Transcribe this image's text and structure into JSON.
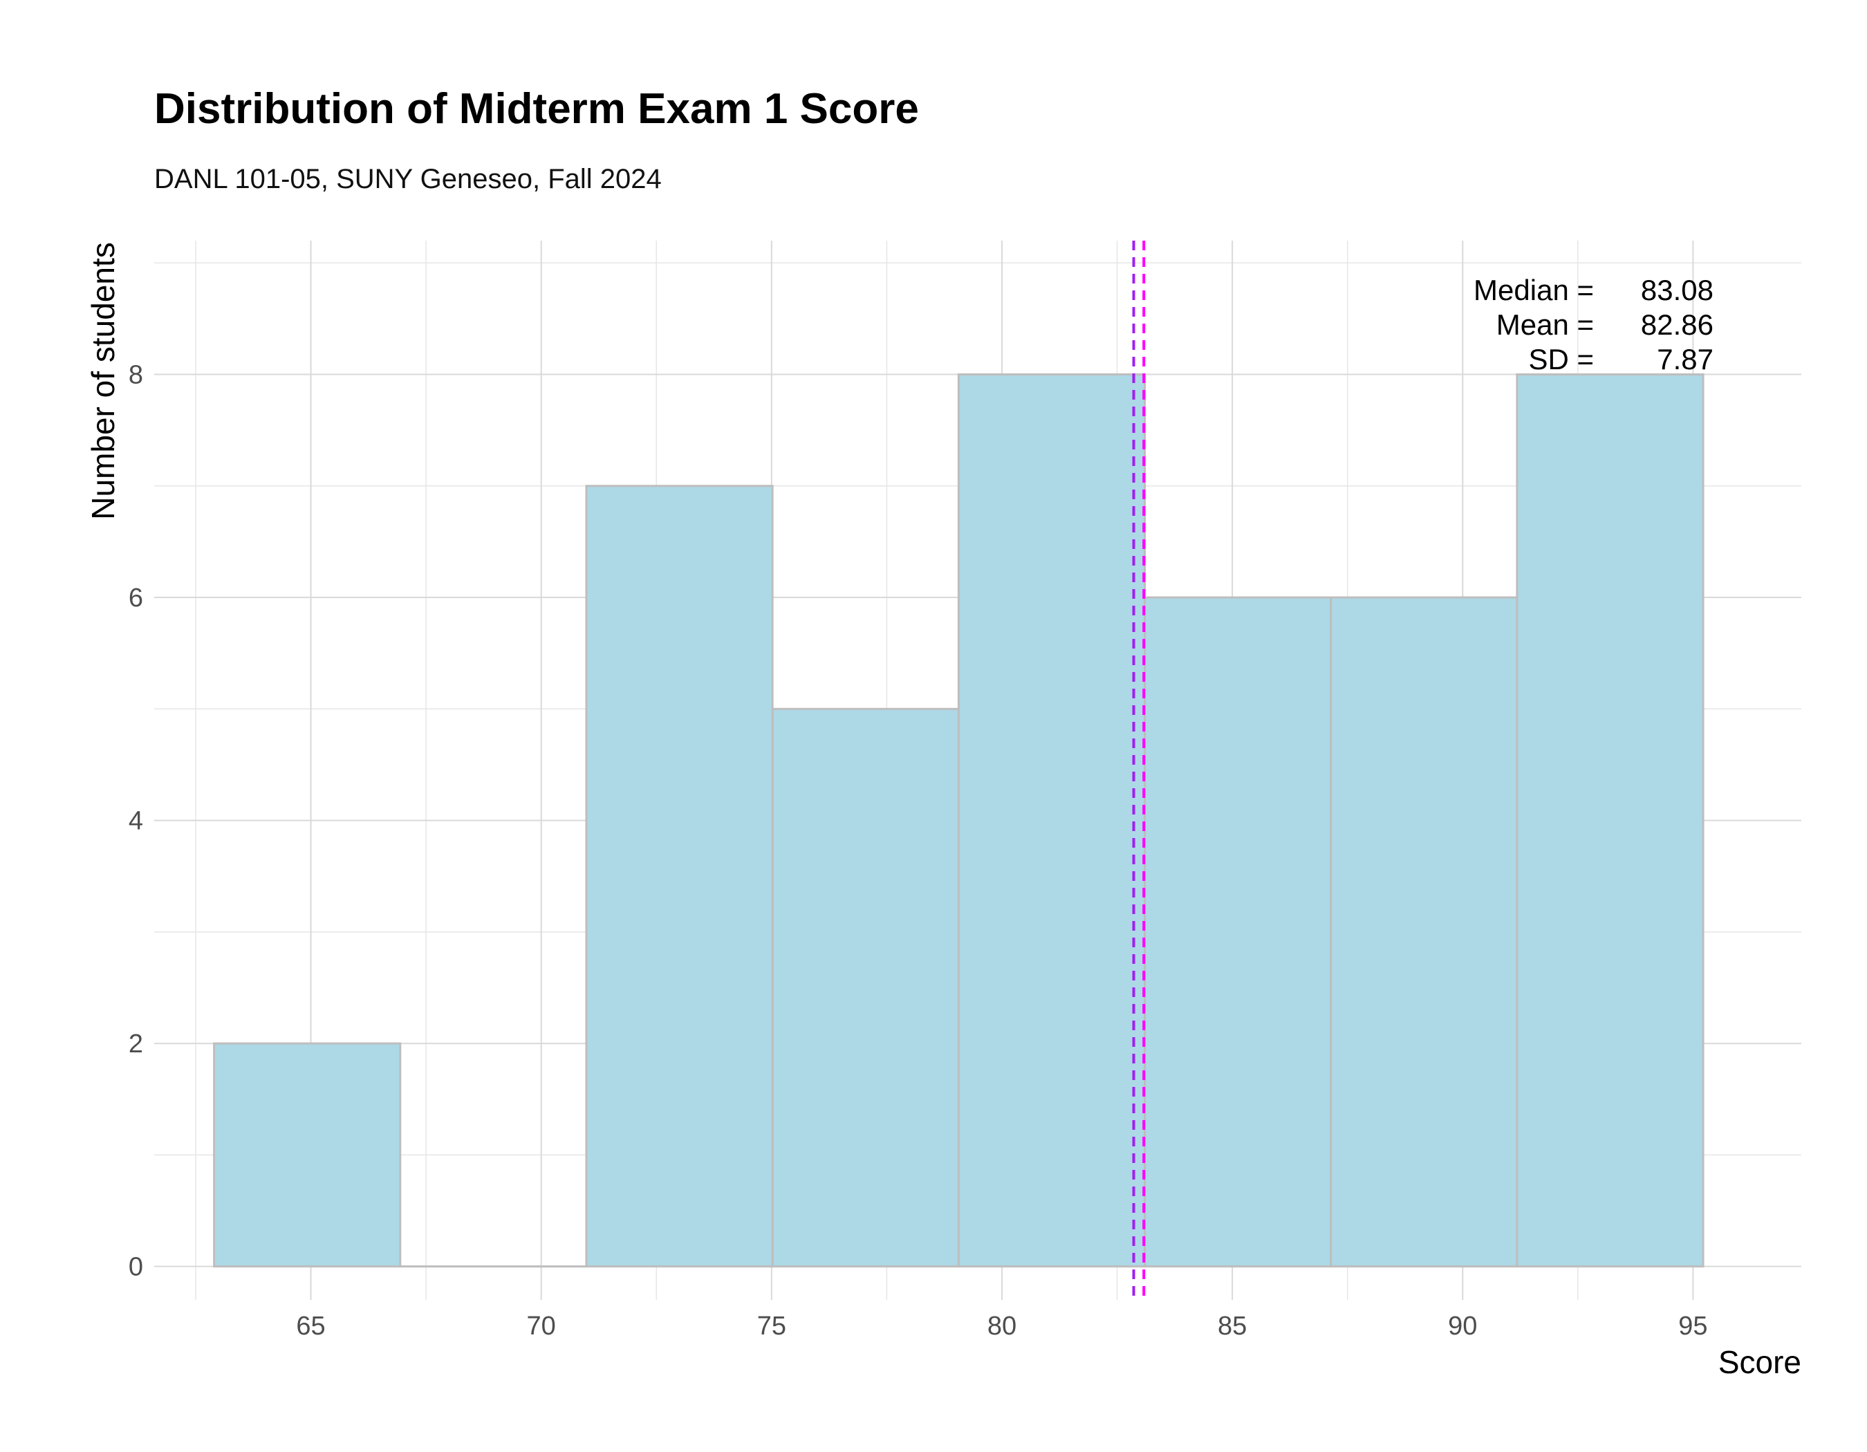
{
  "chart_data": {
    "type": "bar",
    "title": "Distribution of Midterm Exam 1 Score",
    "subtitle": "DANL 101-05, SUNY Geneseo, Fall 2024",
    "xlabel": "Score",
    "ylabel": "Number of students",
    "bins": [
      {
        "from": 62.9,
        "to": 66.94,
        "count": 2
      },
      {
        "from": 66.94,
        "to": 70.98,
        "count": 0
      },
      {
        "from": 70.98,
        "to": 75.02,
        "count": 7
      },
      {
        "from": 75.02,
        "to": 79.06,
        "count": 5
      },
      {
        "from": 79.06,
        "to": 83.1,
        "count": 8
      },
      {
        "from": 83.1,
        "to": 87.14,
        "count": 6
      },
      {
        "from": 87.14,
        "to": 91.18,
        "count": 6
      },
      {
        "from": 91.18,
        "to": 95.22,
        "count": 8
      }
    ],
    "xlim": [
      61.6,
      97.35
    ],
    "ylim": [
      -0.3,
      9.2
    ],
    "x_ticks": [
      65,
      70,
      75,
      80,
      85,
      90,
      95
    ],
    "y_ticks": [
      0,
      2,
      4,
      6,
      8
    ],
    "reference_lines": [
      {
        "stat": "mean",
        "value": 82.86,
        "color": "#a020f0",
        "style": "dashed"
      },
      {
        "stat": "median",
        "value": 83.08,
        "color": "#ff00ff",
        "style": "dashed"
      }
    ],
    "stats_lines": [
      {
        "label": "Median =",
        "value": "83.08"
      },
      {
        "label": "Mean =",
        "value": "82.86"
      },
      {
        "label": "SD =",
        "value": "7.87"
      }
    ],
    "grid": true,
    "bar_fill": "#add8e6",
    "bar_stroke": "#bebebe"
  }
}
